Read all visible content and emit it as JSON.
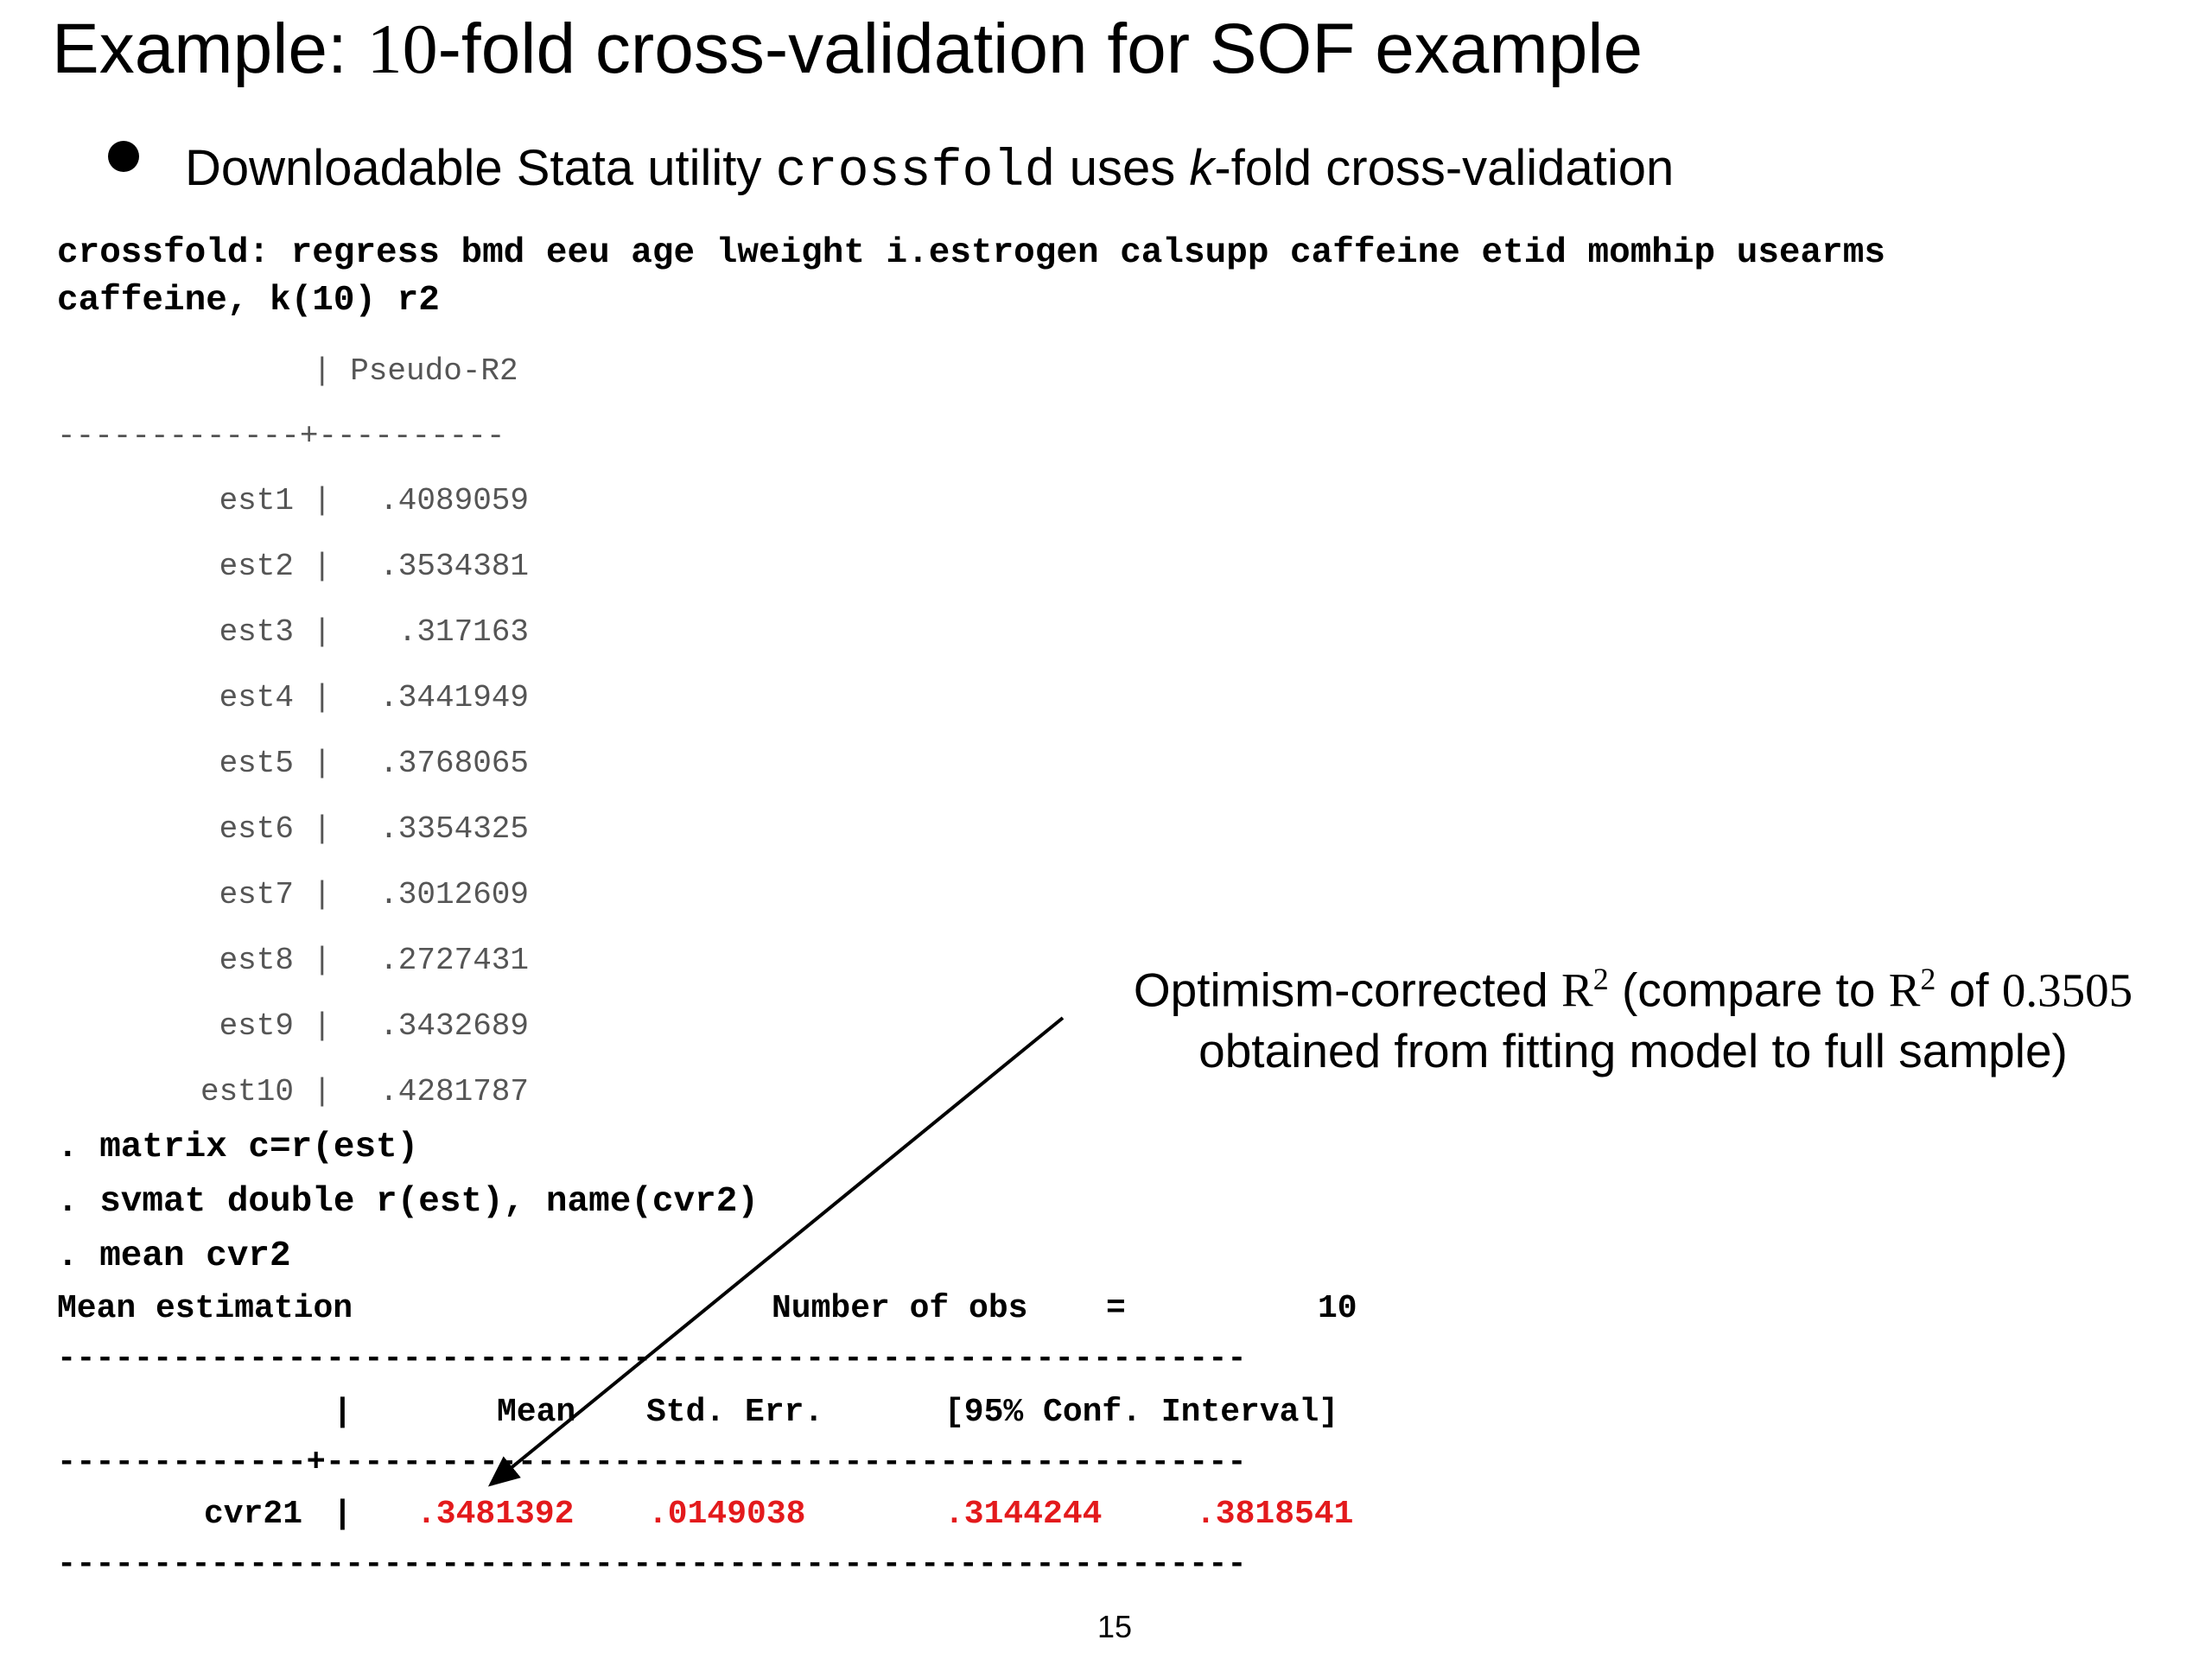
{
  "title": {
    "prefix": "Example: ",
    "number": "10",
    "suffix": "-fold cross-validation for SOF example"
  },
  "bullet": {
    "text_before": "Downloadable Stata utility ",
    "code": "crossfold",
    "text_mid": " uses ",
    "k": "k",
    "text_after": "-fold cross-validation"
  },
  "command": {
    "line1": "crossfold: regress bmd eeu age lweight i.estrogen calsupp caffeine etid momhip usearms",
    "line2": "caffeine, k(10) r2"
  },
  "output": {
    "header": "| Pseudo-R2",
    "divider": "-------------+----------",
    "rows": [
      {
        "label": "est1",
        "value": ".4089059"
      },
      {
        "label": "est2",
        "value": ".3534381"
      },
      {
        "label": "est3",
        "value": ".317163"
      },
      {
        "label": "est4",
        "value": ".3441949"
      },
      {
        "label": "est5",
        "value": ".3768065"
      },
      {
        "label": "est6",
        "value": ".3354325"
      },
      {
        "label": "est7",
        "value": ".3012609"
      },
      {
        "label": "est8",
        "value": ".2727431"
      },
      {
        "label": "est9",
        "value": ".3432689"
      },
      {
        "label": "est10",
        "value": ".4281787"
      }
    ]
  },
  "commands2": [
    ". matrix c=r(est)",
    ". svmat double r(est), name(cvr2)",
    ". mean cvr2"
  ],
  "mean_table": {
    "title": "Mean estimation",
    "obs_label": "Number of obs",
    "obs_eq": "=",
    "obs_value": "10",
    "rule": "--------------------------------------------------------------",
    "header_sep": "|",
    "col_mean": "Mean",
    "col_se": "Std. Err.",
    "col_ci": "[95% Conf. Interval]",
    "mid_rule": "-------------+------------------------------------------------",
    "row_label": "cvr21",
    "row_sep": "|",
    "mean": ".3481392",
    "se": ".0149038",
    "ci_low": ".3144244",
    "ci_high": ".3818541"
  },
  "annotation": {
    "part1": "Optimism-corrected ",
    "R": "R",
    "sup": "2",
    "part2": " (compare to ",
    "R2": "R",
    "sup2": "2",
    "part3": " of ",
    "value": "0.3505",
    "line2": "obtained from fitting model to full sample)"
  },
  "page_number": "15",
  "colors": {
    "highlight": "#e31a1c",
    "output_gray": "#555555"
  }
}
